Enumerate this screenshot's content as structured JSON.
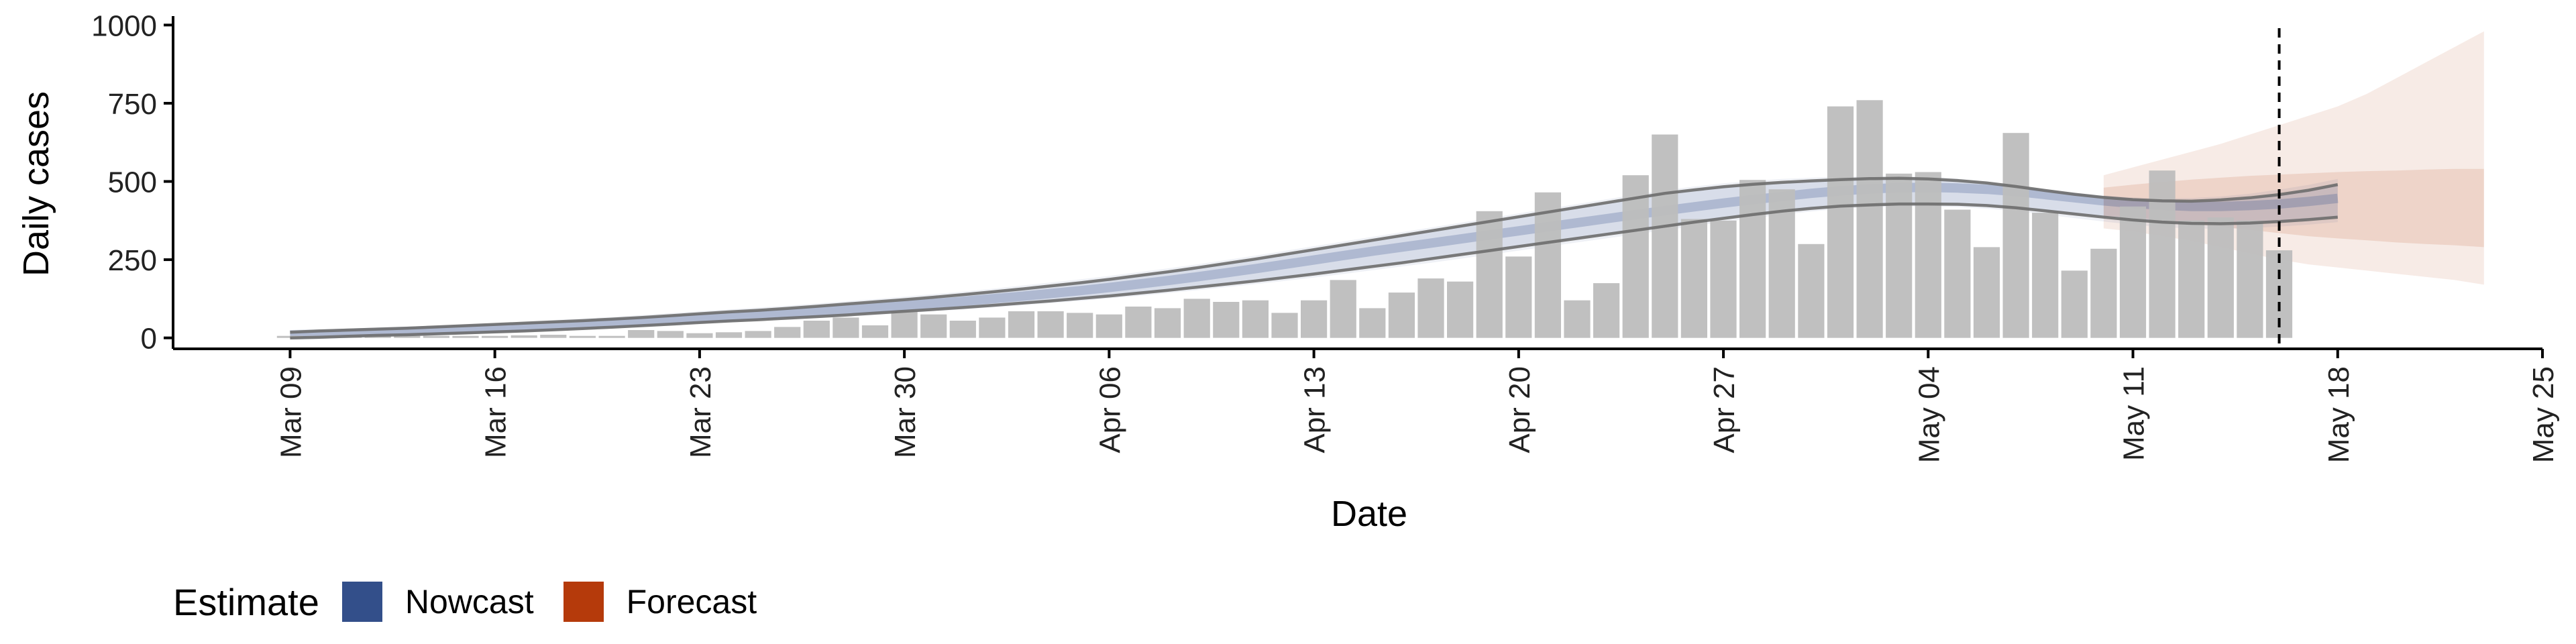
{
  "chart_data": {
    "type": "bar",
    "xlabel": "Date",
    "ylabel": "Daily cases",
    "ylim": [
      -35,
      1020
    ],
    "yticks": [
      0,
      250,
      500,
      750,
      1000
    ],
    "yticklabels": [
      "0",
      "250",
      "500",
      "750",
      "1000"
    ],
    "xticks": [
      "2020-03-09",
      "2020-03-16",
      "2020-03-23",
      "2020-03-30",
      "2020-04-06",
      "2020-04-13",
      "2020-04-20",
      "2020-04-27",
      "2020-05-04",
      "2020-05-11",
      "2020-05-18",
      "2020-05-25"
    ],
    "xticklabels": [
      "Mar 09",
      "Mar 16",
      "Mar 23",
      "Mar 30",
      "Apr 06",
      "Apr 13",
      "Apr 20",
      "Apr 27",
      "May 04",
      "May 11",
      "May 18",
      "May 25"
    ],
    "xlim": [
      "2020-03-05",
      "2020-05-25"
    ],
    "forecast_date": "2020-05-16",
    "daily_cases": {
      "start_date": "2020-03-09",
      "values": [
        0,
        0,
        0,
        0,
        0,
        0,
        5,
        2,
        8,
        10,
        5,
        0,
        25,
        22,
        15,
        18,
        22,
        35,
        55,
        65,
        40,
        85,
        75,
        55,
        65,
        85,
        85,
        80,
        75,
        100,
        95,
        125,
        115,
        120,
        80,
        120,
        185,
        95,
        145,
        190,
        180,
        405,
        260,
        465,
        120,
        175,
        520,
        650,
        380,
        375,
        505,
        475,
        300,
        740,
        760,
        525,
        530,
        410,
        290,
        655,
        400,
        215,
        285,
        420,
        535,
        375,
        385,
        375,
        280
      ]
    },
    "nowcast": {
      "start_date": "2020-03-09",
      "values": [
        10,
        12,
        15,
        18,
        21,
        24,
        27,
        30,
        34,
        38,
        42,
        47,
        52,
        57,
        62,
        67,
        72,
        78,
        84,
        90,
        96,
        103,
        110,
        117,
        125,
        133,
        142,
        151,
        161,
        172,
        183,
        195,
        208,
        221,
        235,
        249,
        263,
        277,
        290,
        303,
        316,
        329,
        342,
        355,
        368,
        381,
        394,
        407,
        419,
        431,
        442,
        452,
        462,
        470,
        476,
        480,
        481,
        479,
        475,
        468,
        458,
        448,
        438,
        430,
        424,
        420,
        420,
        423,
        428,
        436,
        446
      ],
      "lower_90": [
        0,
        2,
        5,
        8,
        10,
        13,
        16,
        19,
        22,
        26,
        30,
        34,
        39,
        44,
        49,
        54,
        58,
        63,
        68,
        73,
        79,
        85,
        91,
        97,
        104,
        111,
        118,
        126,
        134,
        143,
        152,
        162,
        172,
        182,
        193,
        204,
        216,
        228,
        240,
        253,
        266,
        279,
        292,
        305,
        318,
        331,
        344,
        357,
        370,
        382,
        394,
        405,
        414,
        421,
        425,
        428,
        428,
        427,
        423,
        416,
        406,
        396,
        386,
        377,
        370,
        366,
        365,
        367,
        372,
        378,
        386
      ],
      "upper_90": [
        18,
        22,
        25,
        28,
        31,
        35,
        39,
        43,
        47,
        51,
        55,
        60,
        65,
        71,
        77,
        83,
        88,
        94,
        101,
        108,
        115,
        122,
        130,
        138,
        147,
        156,
        166,
        176,
        187,
        199,
        211,
        224,
        238,
        252,
        267,
        282,
        297,
        312,
        327,
        342,
        357,
        372,
        387,
        402,
        417,
        432,
        447,
        462,
        473,
        483,
        491,
        497,
        502,
        506,
        509,
        510,
        508,
        503,
        495,
        484,
        471,
        459,
        449,
        442,
        438,
        437,
        441,
        448,
        458,
        472,
        490
      ],
      "outer_lower": [
        0,
        0,
        2,
        5,
        8,
        10,
        13,
        16,
        19,
        22,
        26,
        30,
        34,
        39,
        44,
        49,
        54,
        58,
        63,
        68,
        73,
        79,
        85,
        91,
        97,
        104,
        111,
        118,
        126,
        134,
        143,
        152,
        162,
        172,
        182,
        193,
        204,
        216,
        228,
        240,
        253,
        266,
        279,
        292,
        305,
        318,
        331,
        344,
        357,
        370,
        382,
        394,
        404,
        412,
        417,
        420,
        420,
        418,
        413,
        405,
        394,
        383,
        372,
        362,
        354,
        350,
        349,
        351,
        356,
        362,
        370
      ],
      "outer_upper": [
        20,
        24,
        28,
        31,
        35,
        39,
        43,
        47,
        52,
        57,
        62,
        67,
        73,
        79,
        85,
        91,
        97,
        103,
        110,
        117,
        124,
        132,
        140,
        148,
        157,
        167,
        177,
        187,
        198,
        210,
        222,
        235,
        249,
        263,
        278,
        293,
        308,
        323,
        338,
        353,
        368,
        383,
        398,
        413,
        428,
        443,
        458,
        472,
        484,
        494,
        502,
        508,
        512,
        515,
        517,
        517,
        515,
        509,
        500,
        489,
        476,
        464,
        455,
        449,
        446,
        447,
        452,
        461,
        474,
        489,
        508
      ]
    },
    "forecast": {
      "start_date": "2020-05-10",
      "median": [
        460,
        470,
        465,
        460,
        455,
        450,
        445,
        440,
        438,
        436,
        435,
        437,
        440,
        445
      ],
      "lower_50": [
        390,
        385,
        375,
        365,
        355,
        345,
        335,
        325,
        318,
        312,
        305,
        300,
        296,
        290
      ],
      "upper_50": [
        480,
        490,
        498,
        506,
        512,
        518,
        522,
        526,
        530,
        533,
        535,
        538,
        540,
        540
      ],
      "lower_90": [
        350,
        340,
        325,
        310,
        290,
        270,
        250,
        235,
        225,
        215,
        205,
        195,
        185,
        170
      ],
      "upper_90": [
        520,
        545,
        570,
        595,
        620,
        650,
        680,
        710,
        740,
        780,
        830,
        880,
        930,
        980
      ]
    },
    "legend": {
      "title": "Estimate",
      "items": [
        {
          "label": "Nowcast",
          "color": "#334f8a"
        },
        {
          "label": "Forecast",
          "color": "#b53a0b"
        }
      ],
      "position": "bottom-left"
    },
    "colors": {
      "bar": "#bdbdbd",
      "nowcast": "#334f8a",
      "nowcast_line": "#6d6d6d",
      "forecast": "#b53a0b",
      "axis": "#000000"
    },
    "grid": false
  }
}
